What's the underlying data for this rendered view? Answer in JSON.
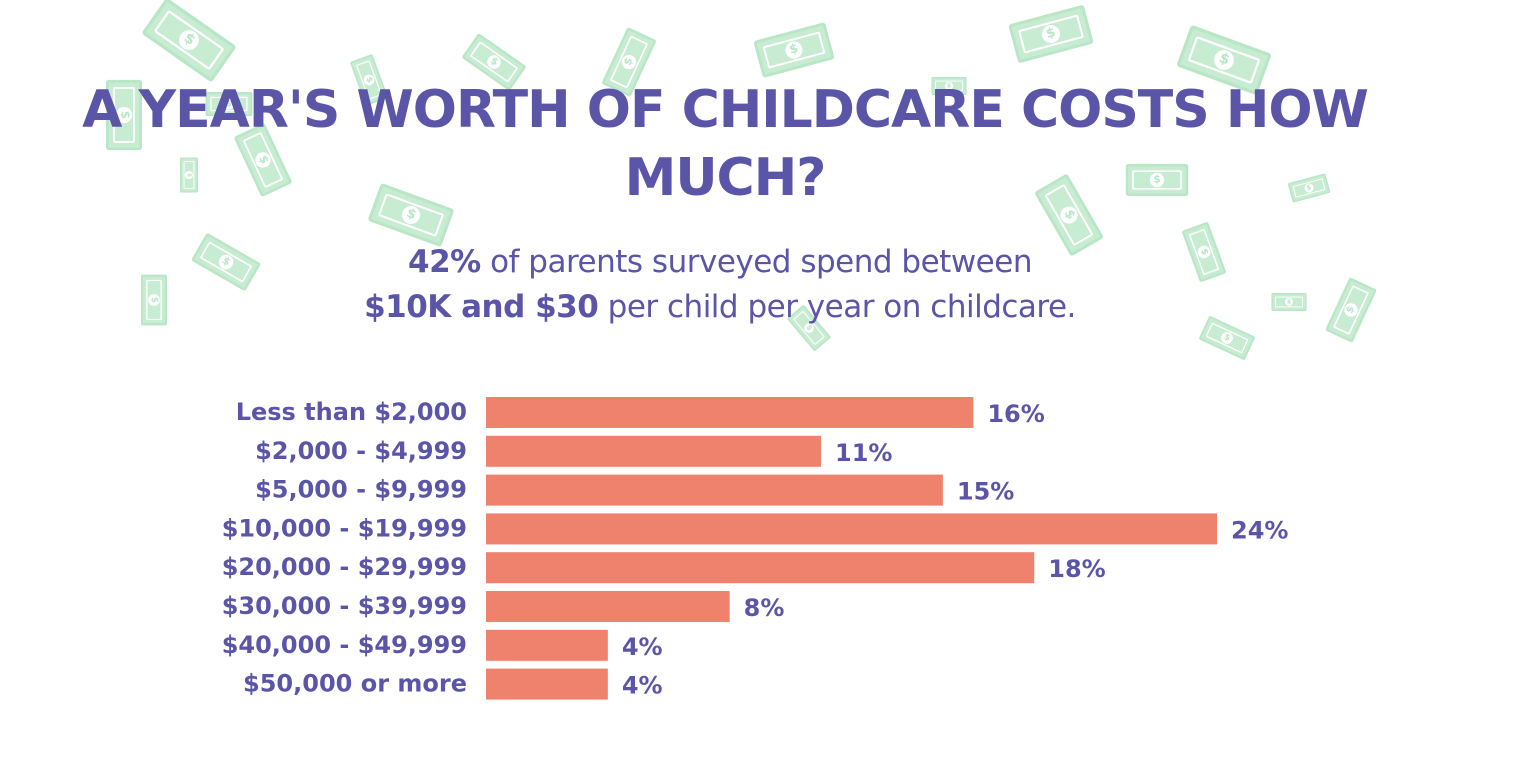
{
  "chart_data": {
    "type": "bar",
    "orientation": "horizontal",
    "title": "A YEAR'S WORTH OF CHILDCARE COSTS HOW MUCH?",
    "subtitle": {
      "highlight_1": "42%",
      "text_1": " of parents surveyed spend between",
      "highlight_2": "$10K and $30",
      "text_2": " per child per year on childcare."
    },
    "categories": [
      "Less than $2,000",
      "$2,000 - $4,999",
      "$5,000 - $9,999",
      "$10,000 - $19,999",
      "$20,000 - $29,999",
      "$30,000 - $39,999",
      "$40,000 - $49,999",
      "$50,000 or more"
    ],
    "values": [
      16,
      11,
      15,
      24,
      18,
      8,
      4,
      4
    ],
    "value_labels": [
      "16%",
      "11%",
      "15%",
      "24%",
      "18%",
      "8%",
      "4%",
      "4%"
    ],
    "xlim": [
      0,
      24
    ],
    "unit": "%",
    "grid": false,
    "legend": "none"
  },
  "colors": {
    "bar": "#ef826d",
    "text": "#5a55a7",
    "decoration": "#c7ecd2"
  }
}
